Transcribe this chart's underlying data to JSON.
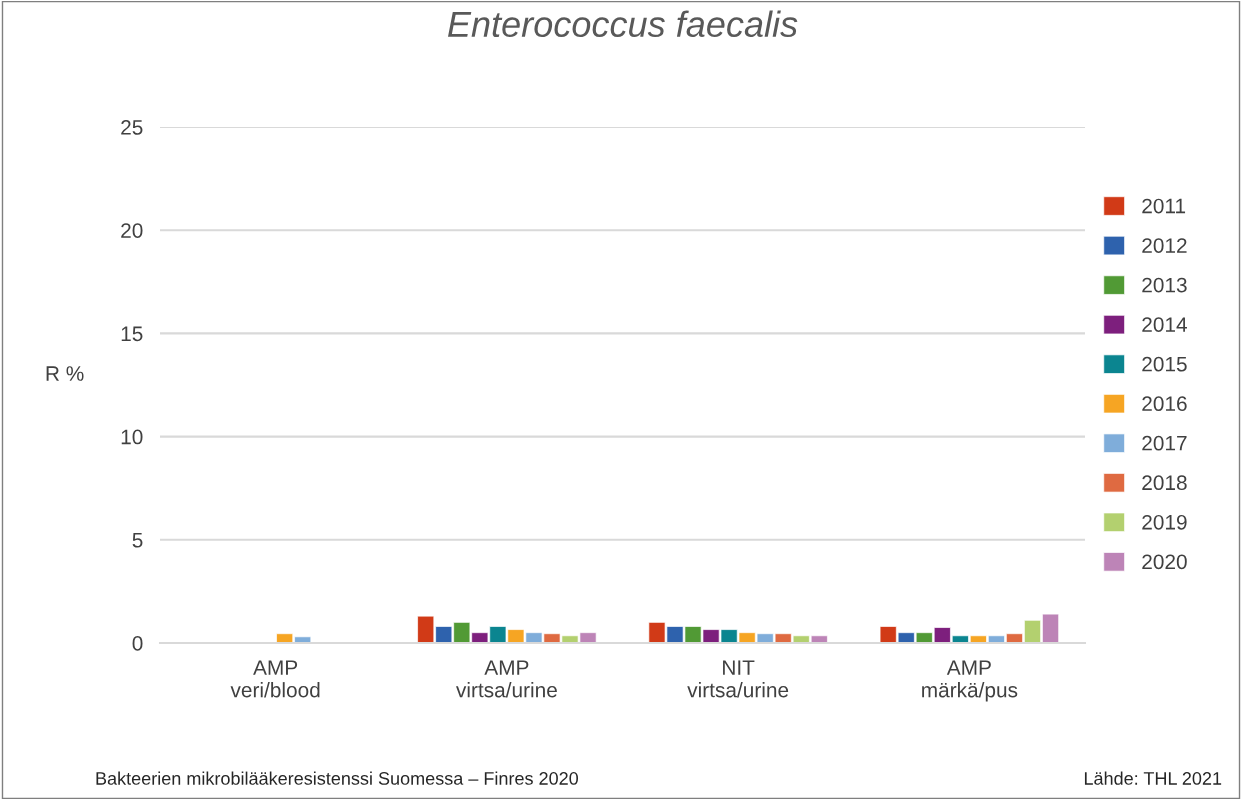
{
  "chart_data": {
    "type": "bar",
    "title": "Enterococcus faecalis",
    "ylabel": "R %",
    "categories": [
      "AMP\nveri/blood",
      "AMP\nvirtsa/urine",
      "NIT\nvirtsa/urine",
      "AMP\nmärkä/pus"
    ],
    "series": [
      {
        "name": "2011",
        "color": "#d13a17",
        "values": [
          null,
          1.3,
          1.0,
          0.8
        ]
      },
      {
        "name": "2012",
        "color": "#2e62ad",
        "values": [
          null,
          0.8,
          0.8,
          0.5
        ]
      },
      {
        "name": "2013",
        "color": "#519a35",
        "values": [
          null,
          1.0,
          0.8,
          0.5
        ]
      },
      {
        "name": "2014",
        "color": "#7d1f7d",
        "values": [
          null,
          0.5,
          0.65,
          0.75
        ]
      },
      {
        "name": "2015",
        "color": "#0b8590",
        "values": [
          null,
          0.8,
          0.65,
          0.35
        ]
      },
      {
        "name": "2016",
        "color": "#f6a523",
        "values": [
          0.45,
          0.65,
          0.5,
          0.35
        ]
      },
      {
        "name": "2017",
        "color": "#7fadda",
        "values": [
          0.3,
          0.5,
          0.45,
          0.35
        ]
      },
      {
        "name": "2018",
        "color": "#df6a41",
        "values": [
          null,
          0.45,
          0.45,
          0.45
        ]
      },
      {
        "name": "2019",
        "color": "#b3d06f",
        "values": [
          null,
          0.35,
          0.35,
          1.1
        ]
      },
      {
        "name": "2020",
        "color": "#bd84b7",
        "values": [
          null,
          0.5,
          0.35,
          1.4
        ]
      }
    ],
    "ylim": [
      0,
      25
    ],
    "yticks": [
      0,
      5,
      10,
      15,
      20,
      25
    ],
    "grid": "y",
    "legend": "right",
    "annotations": [
      "Bakteerien mikrobilääkeresistenssi Suomessa – Finres 2020",
      "Lähde: THL 2021"
    ]
  }
}
